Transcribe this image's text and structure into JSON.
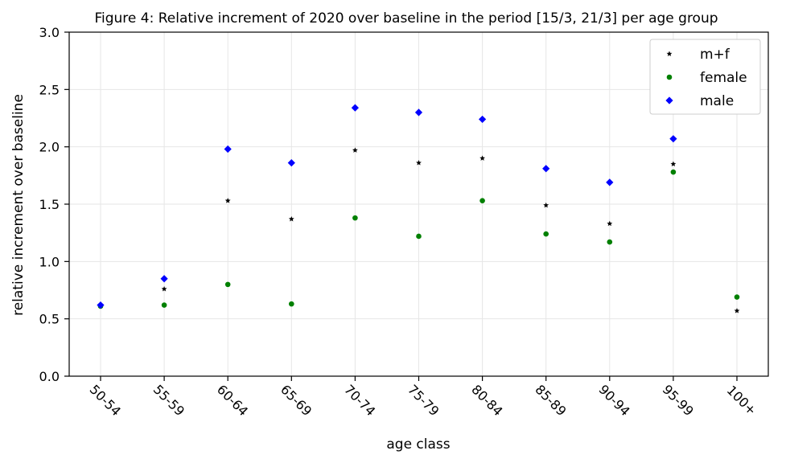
{
  "chart_data": {
    "type": "scatter",
    "title": "Figure 4: Relative increment of 2020 over baseline in the period [15/3, 21/3] per age group",
    "xlabel": "age class",
    "ylabel": "relative increment over baseline",
    "categories": [
      "50-54",
      "55-59",
      "60-64",
      "65-69",
      "70-74",
      "75-79",
      "80-84",
      "85-89",
      "90-94",
      "95-99",
      "100+"
    ],
    "ylim": [
      0.0,
      3.0
    ],
    "yticks": [
      "0.0",
      "0.5",
      "1.0",
      "1.5",
      "2.0",
      "2.5",
      "3.0"
    ],
    "grid": true,
    "legend_position": "top-right",
    "series": [
      {
        "name": "m+f",
        "marker": "star",
        "color": "#000000",
        "values": [
          0.62,
          0.76,
          1.53,
          1.37,
          1.97,
          1.86,
          1.9,
          1.49,
          1.33,
          1.85,
          0.57
        ]
      },
      {
        "name": "female",
        "marker": "circle",
        "color": "#008000",
        "values": [
          0.61,
          0.62,
          0.8,
          0.63,
          1.38,
          1.22,
          1.53,
          1.24,
          1.17,
          1.78,
          0.69
        ]
      },
      {
        "name": "male",
        "marker": "diamond",
        "color": "#0000ff",
        "values": [
          0.62,
          0.85,
          1.98,
          1.86,
          2.34,
          2.3,
          2.24,
          1.81,
          1.69,
          2.07,
          null
        ]
      }
    ]
  }
}
